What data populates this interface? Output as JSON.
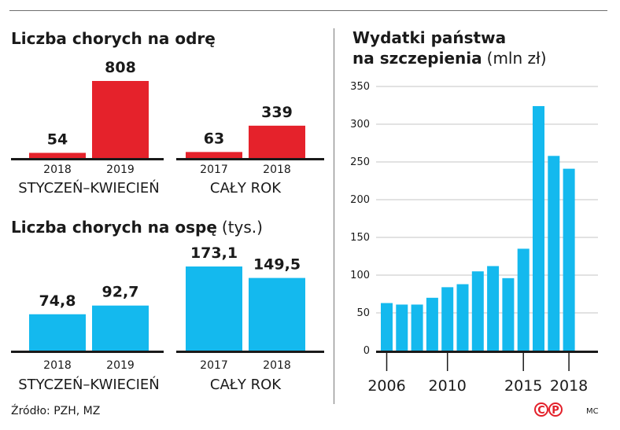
{
  "source": "Źródło: PZH, MZ",
  "author": "MC",
  "logo_letters": [
    "C",
    "P"
  ],
  "colors": {
    "red": "#e5222b",
    "blue": "#14b9ee",
    "grid": "#c4c4c4",
    "axis": "#1a1a1a"
  },
  "chart_data": [
    {
      "type": "bar",
      "title": "Liczba chorych na odrę",
      "subtitle_unit": "",
      "groups": [
        {
          "label": "STYCZEŃ–KWIECIEŃ",
          "categories": [
            "2018",
            "2019"
          ],
          "values": [
            54,
            808
          ],
          "value_labels": [
            "54",
            "808"
          ]
        },
        {
          "label": "CAŁY ROK",
          "categories": [
            "2017",
            "2018"
          ],
          "values": [
            63,
            339
          ],
          "value_labels": [
            "63",
            "339"
          ]
        }
      ],
      "color": "#e5222b"
    },
    {
      "type": "bar",
      "title": "Liczba chorych na ospę",
      "subtitle_unit": "(tys.)",
      "groups": [
        {
          "label": "STYCZEŃ–KWIECIEŃ",
          "categories": [
            "2018",
            "2019"
          ],
          "values": [
            74.8,
            92.7
          ],
          "value_labels": [
            "74,8",
            "92,7"
          ]
        },
        {
          "label": "CAŁY ROK",
          "categories": [
            "2017",
            "2018"
          ],
          "values": [
            173.1,
            149.5
          ],
          "value_labels": [
            "173,1",
            "149,5"
          ]
        }
      ],
      "color": "#14b9ee"
    },
    {
      "type": "bar",
      "title_line1": "Wydatki państwa",
      "title_line2": "na szczepienia",
      "subtitle_unit": "(mln zł)",
      "x": [
        2006,
        2007,
        2008,
        2009,
        2010,
        2011,
        2012,
        2013,
        2014,
        2015,
        2016,
        2017,
        2018
      ],
      "values": [
        63,
        61,
        61,
        70,
        84,
        88,
        105,
        112,
        96,
        135,
        324,
        258,
        241
      ],
      "xtick_labels": [
        "2006",
        "2010",
        "2015",
        "2018"
      ],
      "yticks": [
        0,
        50,
        100,
        150,
        200,
        250,
        300,
        350
      ],
      "ylim": [
        0,
        350
      ],
      "grid": true,
      "color": "#14b9ee"
    }
  ]
}
